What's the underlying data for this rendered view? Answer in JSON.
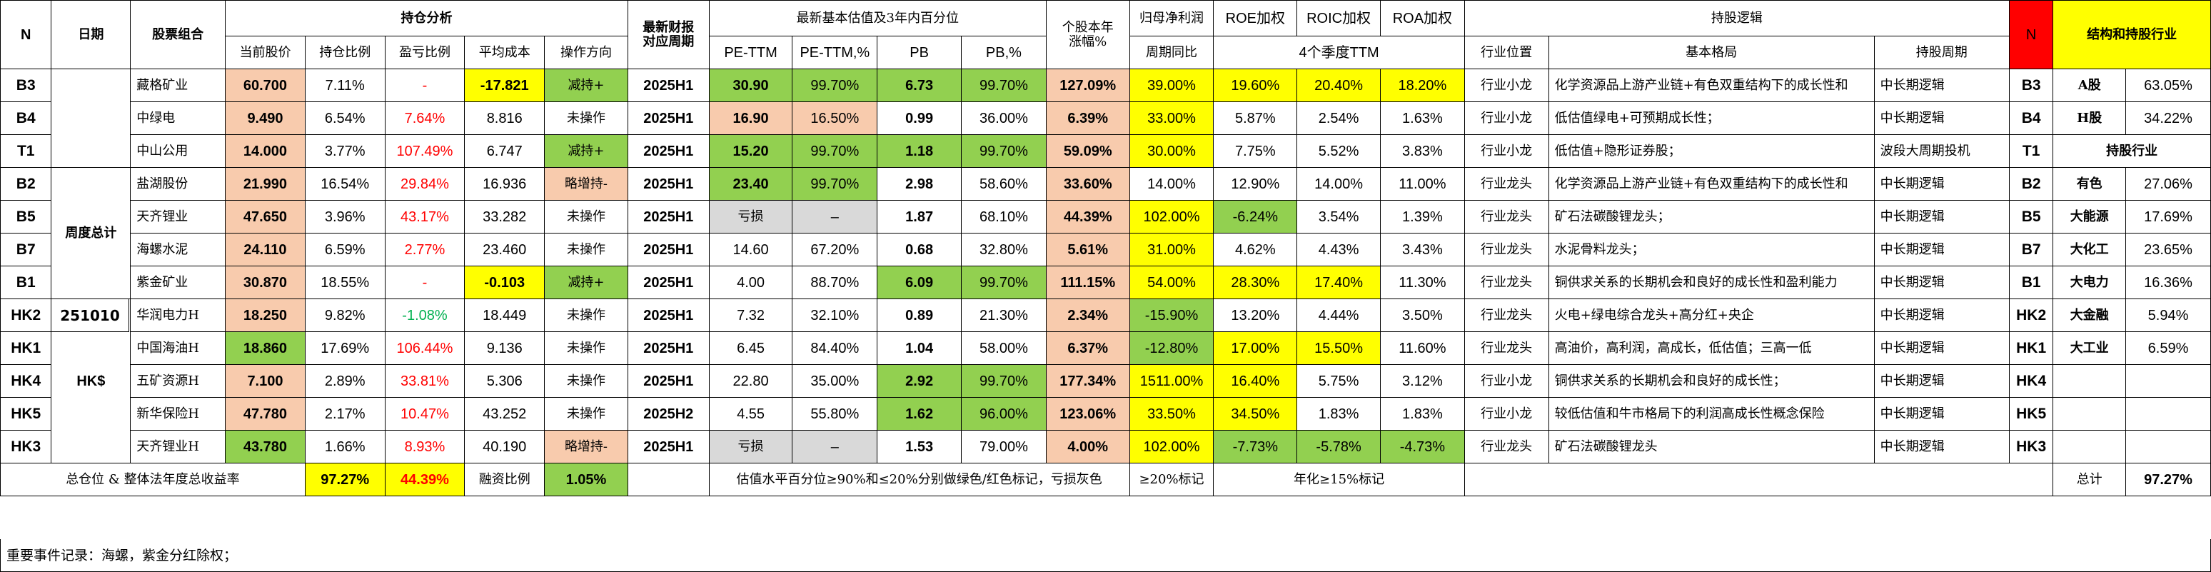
{
  "headers": {
    "n": "N",
    "date": "日期",
    "combo": "股票组合",
    "hold_group": "持仓分析",
    "price": "当前股价",
    "weight": "持仓比例",
    "pnl": "盈亏比例",
    "avg_cost": "平均成本",
    "op": "操作方向",
    "report_period_line1": "最新财报",
    "report_period_line2": "对应周期",
    "val_group": "最新基本估值及3年内百分位",
    "pe_ttm": "PE-TTM",
    "pe_ttm_pct": "PE-TTM,%",
    "pb": "PB",
    "pb_pct": "PB,%",
    "ytd_line1": "个股本年",
    "ytd_line2": "涨幅%",
    "profit_line1": "归母净利润",
    "profit_line2": "周期同比",
    "roe": "ROE加权",
    "roic": "ROIC加权",
    "roa": "ROA加权",
    "ttm4": "4个季度TTM",
    "logic_group": "持股逻辑",
    "position": "行业位置",
    "pattern": "基本格局",
    "cycle": "持股周期",
    "right_n": "N",
    "structure": "结构和持股行业"
  },
  "summary_labels": {
    "weekly": "周度总计",
    "date": "251010",
    "hk": "HK$"
  },
  "rows": [
    {
      "code": "B3",
      "name": "藏格矿业",
      "price": "60.700",
      "weight": "7.11%",
      "pnl": "-",
      "avg": "-17.821",
      "op": "减持+",
      "period": "2025H1",
      "pe": "30.90",
      "pepct": "99.70%",
      "pb": "6.73",
      "pbpct": "99.70%",
      "ytd": "127.09%",
      "profit": "39.00%",
      "roe": "19.60%",
      "roic": "20.40%",
      "roa": "18.20%",
      "pos": "行业小龙",
      "pattern": "化学资源品上游产业链+有色双重结构下的成长性和",
      "cycle": "中长期逻辑",
      "rcode": "B3",
      "struct_label": "A股",
      "struct_val": "63.05%"
    },
    {
      "code": "B4",
      "name": "中绿电",
      "price": "9.490",
      "weight": "6.54%",
      "pnl": "7.64%",
      "avg": "8.816",
      "op": "未操作",
      "period": "2025H1",
      "pe": "16.90",
      "pepct": "16.50%",
      "pb": "0.99",
      "pbpct": "36.00%",
      "ytd": "6.39%",
      "profit": "33.00%",
      "roe": "5.87%",
      "roic": "2.54%",
      "roa": "1.63%",
      "pos": "行业小龙",
      "pattern": "低估值绿电+可预期成长性；",
      "cycle": "中长期逻辑",
      "rcode": "B4",
      "struct_label": "H股",
      "struct_val": "34.22%"
    },
    {
      "code": "T1",
      "name": "中山公用",
      "price": "14.000",
      "weight": "3.77%",
      "pnl": "107.49%",
      "avg": "6.747",
      "op": "减持+",
      "period": "2025H1",
      "pe": "15.20",
      "pepct": "99.70%",
      "pb": "1.18",
      "pbpct": "99.70%",
      "ytd": "59.09%",
      "profit": "30.00%",
      "roe": "7.75%",
      "roic": "5.52%",
      "roa": "3.83%",
      "pos": "行业小龙",
      "pattern": "低估值+隐形证券股；",
      "cycle": "波段大周期投机",
      "rcode": "T1",
      "struct_label": "持股行业",
      "struct_val": ""
    },
    {
      "code": "B2",
      "name": "盐湖股份",
      "price": "21.990",
      "weight": "16.54%",
      "pnl": "29.84%",
      "avg": "16.936",
      "op": "略增持-",
      "period": "2025H1",
      "pe": "23.40",
      "pepct": "99.70%",
      "pb": "2.98",
      "pbpct": "58.60%",
      "ytd": "33.60%",
      "profit": "14.00%",
      "roe": "12.90%",
      "roic": "14.00%",
      "roa": "11.00%",
      "pos": "行业龙头",
      "pattern": "化学资源品上游产业链+有色双重结构下的成长性和",
      "cycle": "中长期逻辑",
      "rcode": "B2",
      "struct_label": "有色",
      "struct_val": "27.06%"
    },
    {
      "code": "B5",
      "name": "天齐锂业",
      "price": "47.650",
      "weight": "3.96%",
      "pnl": "43.17%",
      "avg": "33.282",
      "op": "未操作",
      "period": "2025H1",
      "pe": "亏损",
      "pepct": "–",
      "pb": "1.87",
      "pbpct": "68.10%",
      "ytd": "44.39%",
      "profit": "102.00%",
      "roe": "-6.24%",
      "roic": "3.54%",
      "roa": "1.39%",
      "pos": "行业龙头",
      "pattern": "矿石法碳酸锂龙头；",
      "cycle": "中长期逻辑",
      "rcode": "B5",
      "struct_label": "大能源",
      "struct_val": "17.69%"
    },
    {
      "code": "B7",
      "name": "海螺水泥",
      "price": "24.110",
      "weight": "6.59%",
      "pnl": "2.77%",
      "avg": "23.460",
      "op": "未操作",
      "period": "2025H1",
      "pe": "14.60",
      "pepct": "67.20%",
      "pb": "0.68",
      "pbpct": "32.80%",
      "ytd": "5.61%",
      "profit": "31.00%",
      "roe": "4.62%",
      "roic": "4.43%",
      "roa": "3.43%",
      "pos": "行业龙头",
      "pattern": "水泥骨料龙头；",
      "cycle": "中长期逻辑",
      "rcode": "B7",
      "struct_label": "大化工",
      "struct_val": "23.65%"
    },
    {
      "code": "B1",
      "name": "紫金矿业",
      "price": "30.870",
      "weight": "18.55%",
      "pnl": "-",
      "avg": "-0.103",
      "op": "减持+",
      "period": "2025H1",
      "pe": "4.00",
      "pepct": "88.70%",
      "pb": "6.09",
      "pbpct": "99.70%",
      "ytd": "111.15%",
      "profit": "54.00%",
      "roe": "28.30%",
      "roic": "17.40%",
      "roa": "11.30%",
      "pos": "行业龙头",
      "pattern": "铜供求关系的长期机会和良好的成长性和盈利能力",
      "cycle": "中长期逻辑",
      "rcode": "B1",
      "struct_label": "大电力",
      "struct_val": "16.36%"
    },
    {
      "code": "HK2",
      "name": "华润电力H",
      "price": "18.250",
      "weight": "9.82%",
      "pnl": "-1.08%",
      "avg": "18.449",
      "op": "未操作",
      "period": "2025H1",
      "pe": "7.32",
      "pepct": "32.10%",
      "pb": "0.89",
      "pbpct": "21.30%",
      "ytd": "2.34%",
      "profit": "-15.90%",
      "roe": "13.20%",
      "roic": "4.44%",
      "roa": "3.50%",
      "pos": "行业龙头",
      "pattern": "火电+绿电综合龙头+高分红+央企",
      "cycle": "中长期逻辑",
      "rcode": "HK2",
      "struct_label": "大金融",
      "struct_val": "5.94%"
    },
    {
      "code": "HK1",
      "name": "中国海油H",
      "price": "18.860",
      "weight": "17.69%",
      "pnl": "106.44%",
      "avg": "9.136",
      "op": "未操作",
      "period": "2025H1",
      "pe": "6.45",
      "pepct": "84.40%",
      "pb": "1.04",
      "pbpct": "58.00%",
      "ytd": "6.37%",
      "profit": "-12.80%",
      "roe": "17.00%",
      "roic": "15.50%",
      "roa": "11.60%",
      "pos": "行业龙头",
      "pattern": "高油价，高利润，高成长，低估值；三高一低",
      "cycle": "中长期逻辑",
      "rcode": "HK1",
      "struct_label": "大工业",
      "struct_val": "6.59%"
    },
    {
      "code": "HK4",
      "name": "五矿资源H",
      "price": "7.100",
      "weight": "2.89%",
      "pnl": "33.81%",
      "avg": "5.306",
      "op": "未操作",
      "period": "2025H1",
      "pe": "22.80",
      "pepct": "35.00%",
      "pb": "2.92",
      "pbpct": "99.70%",
      "ytd": "177.34%",
      "profit": "1511.00%",
      "roe": "16.40%",
      "roic": "5.75%",
      "roa": "3.12%",
      "pos": "行业小龙",
      "pattern": "铜供求关系的长期机会和良好的成长性；",
      "cycle": "中长期逻辑",
      "rcode": "HK4",
      "struct_label": "",
      "struct_val": ""
    },
    {
      "code": "HK5",
      "name": "新华保险H",
      "price": "47.780",
      "weight": "2.17%",
      "pnl": "10.47%",
      "avg": "43.252",
      "op": "未操作",
      "period": "2025H2",
      "pe": "4.55",
      "pepct": "55.80%",
      "pb": "1.62",
      "pbpct": "96.00%",
      "ytd": "123.06%",
      "profit": "33.50%",
      "roe": "34.50%",
      "roic": "1.83%",
      "roa": "1.83%",
      "pos": "行业小龙",
      "pattern": "较低估值和牛市格局下的利润高成长性概念保险",
      "cycle": "中长期逻辑",
      "rcode": "HK5",
      "struct_label": "",
      "struct_val": ""
    },
    {
      "code": "HK3",
      "name": "天齐锂业H",
      "price": "43.780",
      "weight": "1.66%",
      "pnl": "8.93%",
      "avg": "40.190",
      "op": "略增持-",
      "period": "2025H1",
      "pe": "亏损",
      "pepct": "–",
      "pb": "1.53",
      "pbpct": "79.00%",
      "ytd": "4.00%",
      "profit": "102.00%",
      "roe": "-7.73%",
      "roic": "-5.78%",
      "roa": "-4.73%",
      "pos": "行业龙头",
      "pattern": "矿石法碳酸锂龙头",
      "cycle": "中长期逻辑",
      "rcode": "HK3",
      "struct_label": "",
      "struct_val": ""
    }
  ],
  "footer": {
    "total_label": "总仓位 & 整体法年度总收益率",
    "total_weight": "97.27%",
    "total_return": "44.39%",
    "margin_label": "融资比例",
    "margin_val": "1.05%",
    "val_note": "估值水平百分位≥90%和≤20%分别做绿色/红色标记，亏损灰色",
    "ytd_note": "≥20%标记",
    "ratio_note": "年化≥15%标记",
    "sum_label": "总计",
    "sum_val": "97.27%"
  },
  "events": "重要事件记录：海螺，紫金分红除权；",
  "colors": {
    "yellow": "#ffff00",
    "green": "#92d050",
    "peach": "#f8cbad",
    "gray": "#d9d9d9",
    "red": "#ff0000"
  }
}
